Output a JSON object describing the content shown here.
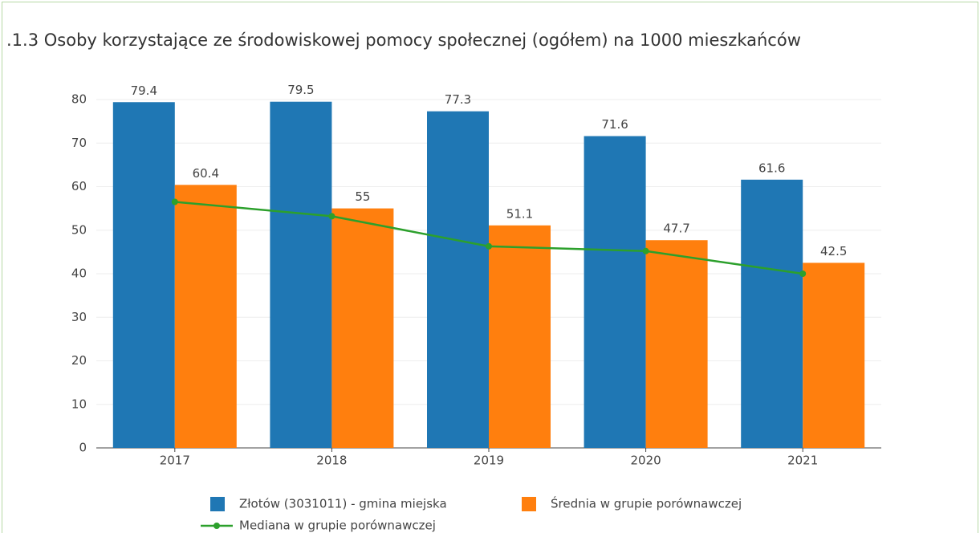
{
  "chart_data": {
    "type": "bar",
    "title": ".1.3 Osoby korzystające ze środowiskowej pomocy społecznej (ogółem) na 1000 mieszkańców",
    "categories": [
      "2017",
      "2018",
      "2019",
      "2020",
      "2021"
    ],
    "series": [
      {
        "name": "Złotów (3031011) - gmina miejska",
        "color": "#1f77b4",
        "type": "bar",
        "values": [
          79.4,
          79.5,
          77.3,
          71.6,
          61.6
        ]
      },
      {
        "name": "Średnia w grupie porównawczej",
        "color": "#ff7f0e",
        "type": "bar",
        "values": [
          60.4,
          55,
          51.1,
          47.7,
          42.5
        ]
      },
      {
        "name": "Mediana w grupie porównawczej",
        "color": "#2ca02c",
        "type": "line",
        "values": [
          56.5,
          53.2,
          46.3,
          45.2,
          40
        ]
      }
    ],
    "ylim": [
      0,
      80
    ],
    "yticks": [
      0,
      10,
      20,
      30,
      40,
      50,
      60,
      70,
      80
    ],
    "grid": true
  }
}
